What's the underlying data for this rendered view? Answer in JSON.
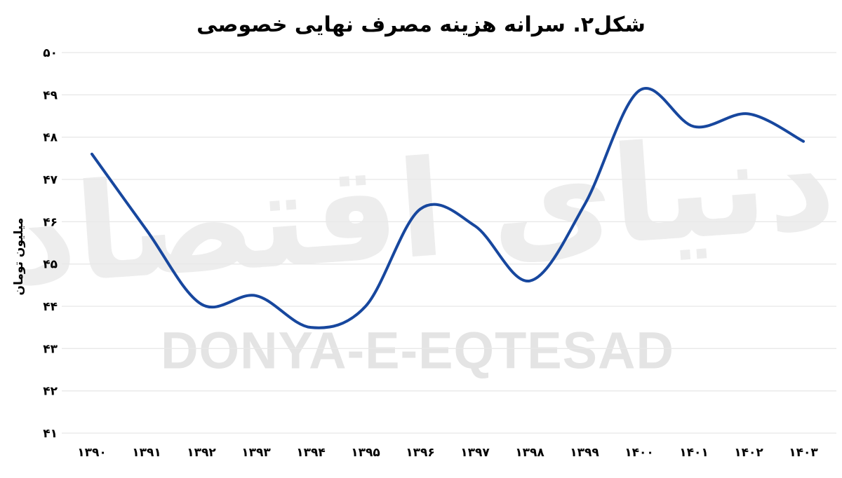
{
  "page": {
    "title": "شکل۲. سرانه هزینه مصرف نهایی خصوصی",
    "watermark_latin": "DONYA-E-EQTESAD",
    "watermark_persian": "دنیای اقتصاد"
  },
  "colors": {
    "line": "#17479e",
    "grid": "#e8e8e8",
    "tick_text": "#000000",
    "watermark_persian": "#ededed",
    "watermark_latin": "#e4e4e4",
    "background": "#ffffff"
  },
  "chart_data": {
    "type": "line",
    "title": "شکل۲. سرانه هزینه مصرف نهایی خصوصی",
    "xlabel": "",
    "ylabel": "میلیون تومان",
    "categories": [
      1390,
      1391,
      1392,
      1393,
      1394,
      1395,
      1396,
      1397,
      1398,
      1399,
      1400,
      1401,
      1402,
      1403
    ],
    "x_tick_labels": [
      "۱۳۹۰",
      "۱۳۹۱",
      "۱۳۹۲",
      "۱۳۹۳",
      "۱۳۹۴",
      "۱۳۹۵",
      "۱۳۹۶",
      "۱۳۹۷",
      "۱۳۹۸",
      "۱۳۹۹",
      "۱۴۰۰",
      "۱۴۰۱",
      "۱۴۰۲",
      "۱۴۰۳"
    ],
    "values": [
      47.6,
      45.8,
      44.05,
      44.25,
      43.5,
      44.0,
      46.3,
      45.9,
      44.6,
      46.4,
      49.1,
      48.25,
      48.55,
      47.9
    ],
    "unit": "میلیون تومان",
    "ylim": [
      41,
      50
    ],
    "y_ticks": [
      41,
      42,
      43,
      44,
      45,
      46,
      47,
      48,
      49,
      50
    ],
    "y_tick_labels": [
      "۴۱",
      "۴۲",
      "۴۳",
      "۴۴",
      "۴۵",
      "۴۶",
      "۴۷",
      "۴۸",
      "۴۹",
      "۵۰"
    ],
    "grid": "horizontal",
    "legend": "none",
    "smooth": true
  }
}
